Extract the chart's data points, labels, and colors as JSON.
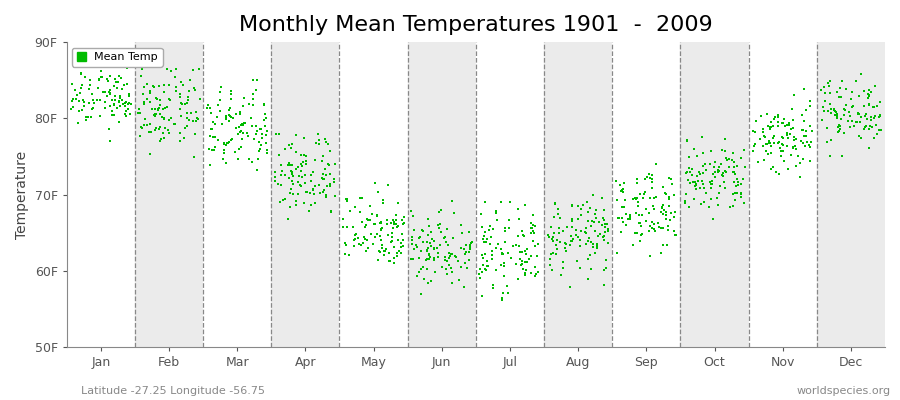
{
  "title": "Monthly Mean Temperatures 1901  -  2009",
  "ylabel": "Temperature",
  "ylim": [
    50,
    90
  ],
  "yticks": [
    50,
    60,
    70,
    80,
    90
  ],
  "ytick_labels": [
    "50F",
    "60F",
    "70F",
    "80F",
    "90F"
  ],
  "months": [
    "Jan",
    "Feb",
    "Mar",
    "Apr",
    "May",
    "Jun",
    "Jul",
    "Aug",
    "Sep",
    "Oct",
    "Nov",
    "Dec"
  ],
  "dot_color": "#00BB00",
  "background_light": "#FFFFFF",
  "background_dark": "#EBEBEB",
  "n_years": 109,
  "monthly_means": [
    83.0,
    81.0,
    78.5,
    72.5,
    65.5,
    63.0,
    62.5,
    64.5,
    68.0,
    72.0,
    77.5,
    81.0
  ],
  "monthly_stds": [
    2.2,
    2.5,
    2.8,
    2.8,
    2.5,
    2.5,
    2.5,
    2.5,
    2.5,
    2.5,
    2.5,
    2.2
  ],
  "monthly_mins": [
    77.0,
    74.0,
    71.0,
    66.0,
    58.0,
    54.5,
    53.5,
    57.0,
    61.5,
    65.0,
    71.0,
    75.0
  ],
  "monthly_maxs": [
    87.5,
    86.5,
    85.0,
    78.0,
    72.0,
    70.5,
    69.0,
    70.0,
    74.0,
    77.5,
    84.5,
    86.0
  ],
  "subtitle_left": "Latitude -27.25 Longitude -56.75",
  "subtitle_right": "worldspecies.org",
  "legend_label": "Mean Temp",
  "title_fontsize": 16,
  "label_fontsize": 10,
  "tick_fontsize": 9,
  "subtitle_fontsize": 8
}
